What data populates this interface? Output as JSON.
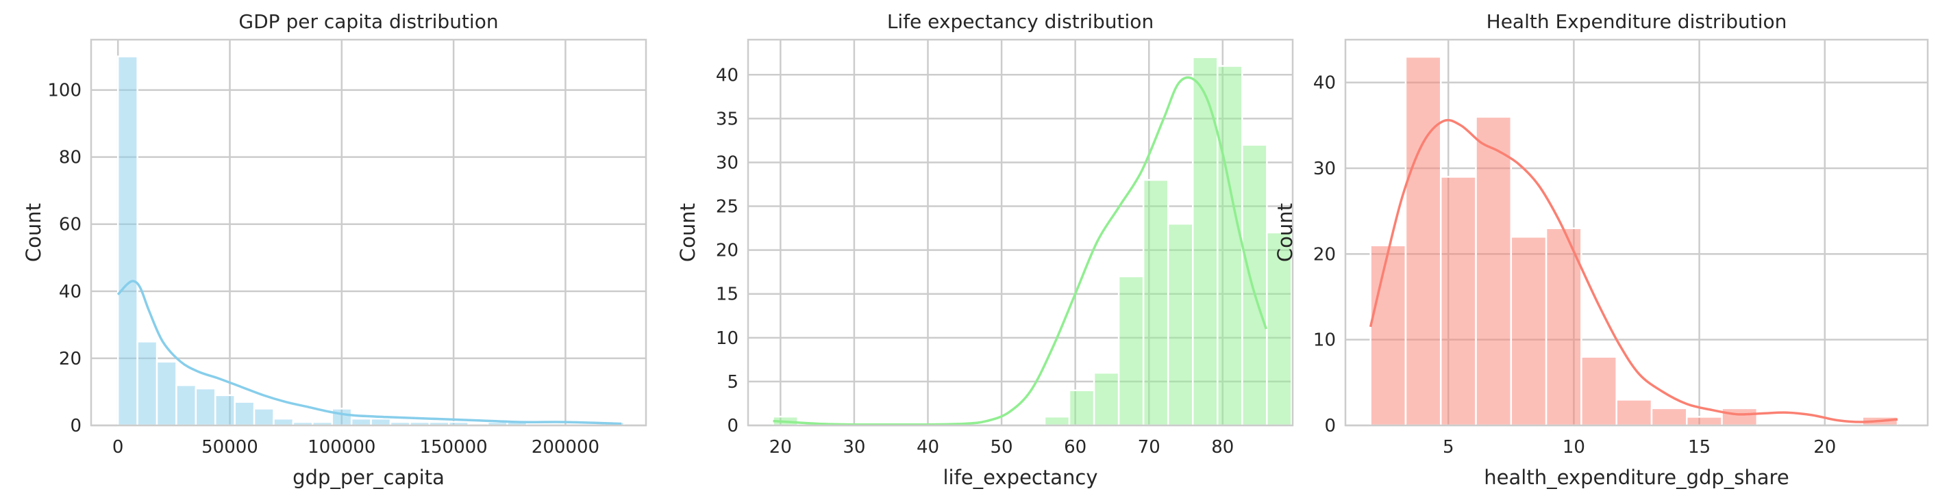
{
  "chart_data": [
    {
      "type": "bar",
      "title": "GDP per capita distribution",
      "xlabel": "gdp_per_capita",
      "ylabel": "Count",
      "xlim": [
        -12000,
        236000
      ],
      "ylim": [
        0,
        115
      ],
      "xticks": [
        0,
        50000,
        100000,
        150000,
        200000
      ],
      "xtick_labels": [
        "0",
        "50000",
        "100000",
        "150000",
        "200000"
      ],
      "yticks": [
        0,
        20,
        40,
        60,
        80,
        100
      ],
      "ytick_labels": [
        "0",
        "20",
        "40",
        "60",
        "80",
        "100"
      ],
      "grid": true,
      "color": "#87ceeb",
      "bin_start": 0,
      "bin_width": 8700,
      "values": [
        110,
        25,
        19,
        12,
        11,
        9,
        7,
        5,
        2,
        1,
        1,
        5,
        2,
        2,
        1,
        1,
        1,
        1,
        0,
        1,
        1,
        0,
        0,
        0,
        0,
        1
      ],
      "kde": {
        "x": [
          0,
          4000,
          7000,
          10000,
          14000,
          20000,
          28000,
          36000,
          45000,
          55000,
          65000,
          75000,
          85000,
          95000,
          105000,
          120000,
          140000,
          160000,
          180000,
          200000,
          225000
        ],
        "y": [
          39,
          42,
          43,
          41,
          34,
          25,
          19,
          16,
          14,
          11.5,
          9,
          7,
          5.5,
          4,
          3,
          2.5,
          2,
          1.5,
          1,
          1,
          0.5
        ]
      }
    },
    {
      "type": "bar",
      "title": "Life expectancy distribution",
      "xlabel": "life_expectancy",
      "ylabel": "Count",
      "xlim": [
        15.6,
        89.5
      ],
      "ylim": [
        0,
        44
      ],
      "xticks": [
        20,
        30,
        40,
        50,
        60,
        70,
        80
      ],
      "xtick_labels": [
        "20",
        "30",
        "40",
        "50",
        "60",
        "70",
        "80"
      ],
      "yticks": [
        0,
        5,
        10,
        15,
        20,
        25,
        30,
        35,
        40
      ],
      "ytick_labels": [
        "0",
        "5",
        "10",
        "15",
        "20",
        "25",
        "30",
        "35",
        "40"
      ],
      "grid": true,
      "color": "#90ee90",
      "bin_start": 19,
      "bin_width": 3.35,
      "values": [
        1,
        0,
        0,
        0,
        0,
        0,
        0,
        0,
        0,
        0,
        0,
        1,
        4,
        6,
        17,
        28,
        23,
        42,
        41,
        32,
        22
      ],
      "kde": {
        "x": [
          19,
          25,
          30,
          35,
          40,
          45,
          48,
          51,
          54,
          57,
          60,
          63,
          66,
          69,
          72,
          74,
          76,
          78,
          80,
          82,
          84,
          85.9
        ],
        "y": [
          0.5,
          0.2,
          0.1,
          0.1,
          0.1,
          0.2,
          0.5,
          1.5,
          4,
          9,
          15,
          21,
          25,
          29,
          35,
          39,
          39.5,
          37,
          31,
          23,
          16,
          11
        ]
      }
    },
    {
      "type": "bar",
      "title": "Health Expenditure distribution",
      "xlabel": "health_expenditure_gdp_share",
      "ylabel": "Count",
      "xlim": [
        0.9,
        24.1
      ],
      "ylim": [
        0,
        45
      ],
      "xticks": [
        5,
        10,
        15,
        20
      ],
      "xtick_labels": [
        "5",
        "10",
        "15",
        "20"
      ],
      "yticks": [
        0,
        10,
        20,
        30,
        40
      ],
      "ytick_labels": [
        "0",
        "10",
        "20",
        "30",
        "40"
      ],
      "grid": true,
      "color": "#fa8072",
      "bin_start": 1.9,
      "bin_width": 1.4,
      "values": [
        21,
        43,
        29,
        36,
        22,
        23,
        8,
        3,
        2,
        1,
        2,
        0,
        0,
        0,
        1
      ],
      "kde": {
        "x": [
          1.9,
          2.5,
          3.2,
          4.0,
          4.8,
          5.5,
          6.3,
          7.0,
          7.8,
          8.6,
          9.4,
          10.2,
          11.0,
          11.8,
          12.6,
          13.5,
          14.5,
          15.5,
          16.5,
          17.5,
          18.5,
          19.5,
          20.5,
          21.5,
          22.9
        ],
        "y": [
          11.5,
          19,
          27,
          33,
          35.5,
          35,
          33,
          32,
          30.5,
          28,
          24,
          19,
          14,
          9.5,
          6,
          4,
          2.5,
          1.8,
          1.3,
          1.4,
          1.5,
          1.2,
          0.6,
          0.4,
          0.7
        ]
      }
    }
  ]
}
